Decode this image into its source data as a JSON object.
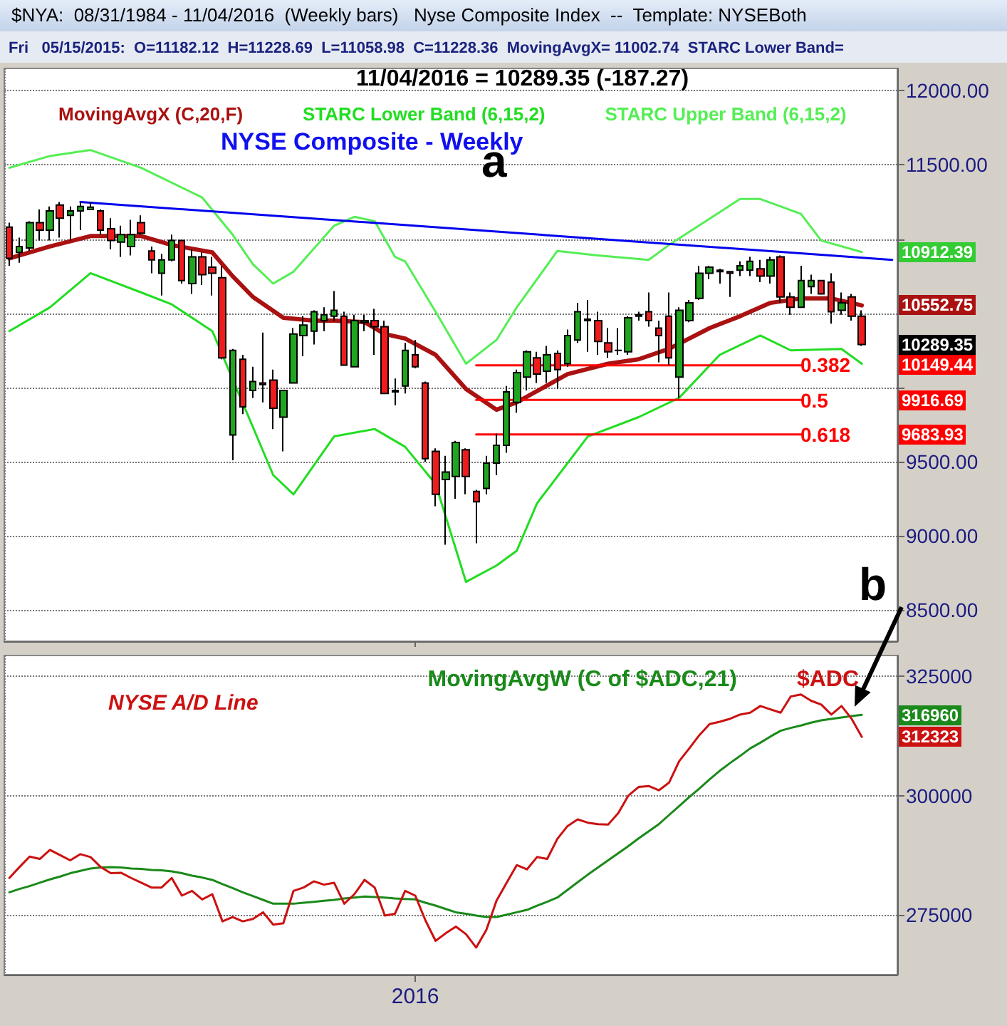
{
  "chart_data": [
    {
      "type": "candlestick",
      "title": "NYSE Composite - Weekly",
      "annotations": [
        "$NYA:  08/31/1984 - 11/04/2016  (Weekly bars)   Nyse Composite Index  --  Template: NYSEBoth",
        "Fri   05/15/2015:  O=11182.12  H=11228.69  L=11058.98  C=11228.36  MovingAvgX= 11002.74  STARC Lower Band=",
        "11/04/2016 = 10289.35 (-187.27)",
        "a",
        "b",
        "10912.39",
        "10552.75",
        "10289.35",
        "10149.44",
        "9916.69",
        "9683.93",
        "0.382",
        "0.5",
        "0.618"
      ],
      "categories": [
        null,
        null,
        null,
        null,
        null,
        null,
        null,
        null,
        null,
        null,
        null,
        null,
        null,
        null,
        null,
        null,
        null,
        null,
        null,
        null,
        null,
        null,
        null,
        null,
        null,
        null,
        null,
        null,
        null,
        null,
        null,
        null,
        null,
        null,
        null,
        null,
        null,
        null,
        null,
        null,
        null,
        null,
        null,
        null,
        null,
        null,
        null,
        null,
        null,
        null,
        null,
        null,
        null,
        null,
        null,
        null,
        null,
        null,
        null,
        null,
        null,
        null,
        null,
        null,
        null,
        null,
        null,
        null,
        null,
        null,
        null,
        null,
        null,
        null,
        null,
        null,
        null,
        null,
        null,
        null,
        null,
        null,
        null,
        null,
        null,
        null,
        null,
        null
      ],
      "ohlc": [
        [
          11080,
          11110,
          10820,
          10870
        ],
        [
          10910,
          11010,
          10840,
          10950
        ],
        [
          10940,
          11120,
          10920,
          11110
        ],
        [
          11110,
          11200,
          10990,
          11060
        ],
        [
          11060,
          11220,
          10990,
          11190
        ],
        [
          11230,
          11250,
          11010,
          11140
        ],
        [
          11160,
          11220,
          10990,
          11190
        ],
        [
          11190,
          11250,
          11060,
          11220
        ],
        [
          11200,
          11250,
          11195,
          11215
        ],
        [
          11190,
          11200,
          11030,
          11060
        ],
        [
          11070,
          11140,
          10930,
          10990
        ],
        [
          10980,
          11090,
          10880,
          11030
        ],
        [
          10950,
          11130,
          10890,
          11030
        ],
        [
          11110,
          11160,
          11030,
          11040
        ],
        [
          10920,
          10950,
          10770,
          10860
        ],
        [
          10770,
          10900,
          10620,
          10860
        ],
        [
          10860,
          11030,
          10850,
          10990
        ],
        [
          10990,
          10990,
          10700,
          10720
        ],
        [
          10700,
          10930,
          10630,
          10880
        ],
        [
          10880,
          10910,
          10690,
          10760
        ],
        [
          10810,
          10880,
          10620,
          10770
        ],
        [
          10740,
          10820,
          10190,
          10200
        ],
        [
          9680,
          10260,
          9510,
          10250
        ],
        [
          10190,
          10220,
          9820,
          9870
        ],
        [
          9980,
          10140,
          9930,
          10040
        ],
        [
          10030,
          10370,
          9900,
          10020
        ],
        [
          10050,
          10120,
          9720,
          9860
        ],
        [
          9800,
          9980,
          9570,
          9980
        ],
        [
          10030,
          10400,
          10030,
          10360
        ],
        [
          10350,
          10480,
          10210,
          10420
        ],
        [
          10380,
          10520,
          10290,
          10510
        ],
        [
          10450,
          10540,
          10380,
          10490
        ],
        [
          10480,
          10650,
          10450,
          10520
        ],
        [
          10480,
          10510,
          10150,
          10150
        ],
        [
          10140,
          10490,
          10140,
          10450
        ],
        [
          10440,
          10490,
          10380,
          10450
        ],
        [
          10450,
          10530,
          10220,
          10410
        ],
        [
          10410,
          10450,
          9960,
          9960
        ],
        [
          9970,
          10060,
          9880,
          9980
        ],
        [
          10010,
          10300,
          9960,
          10250
        ],
        [
          10220,
          10320,
          10130,
          10140
        ],
        [
          10030,
          10040,
          9500,
          9520
        ],
        [
          9570,
          9590,
          9200,
          9280
        ],
        [
          9380,
          9540,
          8940,
          9430
        ],
        [
          9400,
          9640,
          9250,
          9630
        ],
        [
          9580,
          9590,
          9280,
          9400
        ],
        [
          9300,
          9310,
          8950,
          9230
        ],
        [
          9320,
          9540,
          9280,
          9490
        ],
        [
          9490,
          9690,
          9410,
          9610
        ],
        [
          9610,
          10010,
          9560,
          9970
        ],
        [
          9900,
          10120,
          9830,
          10100
        ],
        [
          10070,
          10250,
          9980,
          10240
        ],
        [
          10200,
          10240,
          10030,
          10090
        ],
        [
          10110,
          10280,
          10030,
          10220
        ],
        [
          10230,
          10250,
          9990,
          10120
        ],
        [
          10160,
          10390,
          10140,
          10350
        ],
        [
          10320,
          10570,
          10300,
          10510
        ],
        [
          10460,
          10590,
          10240,
          10450
        ],
        [
          10450,
          10510,
          10220,
          10310
        ],
        [
          10300,
          10400,
          10200,
          10240
        ],
        [
          10250,
          10400,
          10220,
          10250
        ],
        [
          10240,
          10480,
          10220,
          10470
        ],
        [
          10480,
          10510,
          10450,
          10490
        ],
        [
          10510,
          10640,
          10410,
          10450
        ],
        [
          10400,
          10450,
          10170,
          10350
        ],
        [
          10480,
          10640,
          10150,
          10200
        ],
        [
          10070,
          10540,
          9930,
          10520
        ],
        [
          10450,
          10590,
          10440,
          10570
        ],
        [
          10600,
          10820,
          10590,
          10770
        ],
        [
          10770,
          10820,
          10730,
          10810
        ],
        [
          10790,
          10800,
          10700,
          10780
        ],
        [
          10780,
          10780,
          10610,
          10770
        ],
        [
          10790,
          10850,
          10750,
          10820
        ],
        [
          10790,
          10880,
          10750,
          10850
        ],
        [
          10800,
          10860,
          10710,
          10750
        ],
        [
          10750,
          10880,
          10700,
          10860
        ],
        [
          10880,
          10890,
          10570,
          10610
        ],
        [
          10610,
          10640,
          10490,
          10540
        ],
        [
          10540,
          10820,
          10540,
          10720
        ],
        [
          10680,
          10760,
          10630,
          10720
        ],
        [
          10720,
          10720,
          10630,
          10630
        ],
        [
          10710,
          10770,
          10430,
          10510
        ],
        [
          10520,
          10640,
          10490,
          10570
        ],
        [
          10610,
          10630,
          10450,
          10480
        ],
        [
          10480,
          10520,
          10280,
          10289.35
        ],
        null,
        null,
        null
      ],
      "series": [
        {
          "type": "line",
          "name": "MovingAvgX (C,20,F)",
          "color": "#aa1111",
          "values": [
            10870,
            null,
            null,
            null,
            10950,
            null,
            null,
            null,
            11020,
            null,
            null,
            null,
            null,
            11020,
            null,
            null,
            10960,
            null,
            null,
            null,
            10910,
            null,
            10750,
            null,
            10610,
            null,
            null,
            10470,
            null,
            null,
            10450,
            null,
            10450,
            null,
            null,
            10440,
            null,
            10360,
            null,
            10330,
            null,
            null,
            10220,
            null,
            null,
            9990,
            null,
            null,
            9850,
            null,
            9900,
            null,
            null,
            null,
            null,
            10090,
            null,
            null,
            null,
            10160,
            null,
            null,
            10190,
            null,
            null,
            10260,
            null,
            null,
            null,
            10400,
            null,
            null,
            10480,
            null,
            null,
            10570,
            null,
            null,
            10600,
            null,
            null,
            10600,
            null,
            null,
            10552.75,
            null,
            null,
            null
          ]
        },
        {
          "type": "line",
          "name": "STARC Lower Band (6,15,2)",
          "color": "#22dd22",
          "values": [
            10380,
            null,
            null,
            null,
            10540,
            null,
            null,
            null,
            10770,
            null,
            null,
            null,
            null,
            10640,
            null,
            null,
            10560,
            null,
            null,
            null,
            10380,
            null,
            null,
            null,
            null,
            null,
            9410,
            null,
            9280,
            null,
            null,
            null,
            9670,
            null,
            null,
            null,
            9720,
            null,
            null,
            9600,
            null,
            null,
            9350,
            null,
            null,
            8690,
            null,
            null,
            8800,
            null,
            8900,
            null,
            9220,
            null,
            null,
            null,
            null,
            9670,
            null,
            null,
            null,
            null,
            9800,
            null,
            null,
            null,
            9930,
            null,
            null,
            null,
            10220,
            null,
            null,
            null,
            10350,
            null,
            null,
            10250,
            null,
            null,
            null,
            null,
            10260,
            null,
            10160,
            null,
            null,
            null
          ]
        },
        {
          "type": "line",
          "name": "STARC Upper Band (6,15,2)",
          "color": "#55ee55",
          "values": [
            11480,
            null,
            null,
            null,
            11560,
            null,
            null,
            null,
            11600,
            null,
            null,
            null,
            null,
            11480,
            null,
            null,
            null,
            null,
            null,
            11280,
            null,
            null,
            11030,
            null,
            10830,
            null,
            10700,
            null,
            10780,
            null,
            null,
            null,
            11090,
            null,
            11150,
            null,
            11120,
            null,
            10880,
            10850,
            null,
            null,
            10510,
            null,
            null,
            10160,
            null,
            null,
            10320,
            null,
            10540,
            null,
            null,
            null,
            10920,
            null,
            null,
            null,
            10890,
            null,
            null,
            null,
            null,
            10860,
            null,
            10960,
            null,
            null,
            null,
            null,
            null,
            null,
            11270,
            null,
            11270,
            null,
            null,
            null,
            11170,
            null,
            10990,
            null,
            null,
            null,
            10912.39,
            null,
            null,
            null
          ]
        },
        {
          "type": "line",
          "color": "#0000ee",
          "values": [
            null,
            null,
            null,
            null,
            null,
            null,
            null,
            11250,
            null,
            null,
            null,
            null,
            null,
            null,
            null,
            null,
            null,
            null,
            null,
            null,
            null,
            null,
            null,
            null,
            null,
            null,
            null,
            null,
            null,
            null,
            null,
            null,
            null,
            null,
            null,
            null,
            null,
            null,
            null,
            null,
            null,
            null,
            null,
            null,
            null,
            null,
            null,
            null,
            null,
            null,
            null,
            null,
            null,
            null,
            null,
            null,
            null,
            null,
            null,
            null,
            null,
            null,
            null,
            null,
            null,
            null,
            null,
            null,
            null,
            null,
            null,
            null,
            null,
            null,
            null,
            null,
            null,
            null,
            null,
            null,
            null,
            null,
            null,
            null,
            null,
            null,
            null,
            10860
          ]
        },
        {
          "type": "line",
          "color": "#ff0000",
          "values": [
            null,
            null,
            null,
            null,
            null,
            null,
            null,
            null,
            null,
            null,
            null,
            null,
            null,
            null,
            null,
            null,
            null,
            null,
            null,
            null,
            null,
            null,
            null,
            null,
            null,
            null,
            null,
            null,
            null,
            null,
            null,
            null,
            null,
            null,
            null,
            null,
            null,
            null,
            null,
            null,
            null,
            null,
            null,
            null,
            null,
            null,
            10149.44,
            null,
            null,
            null,
            null,
            null,
            null,
            null,
            null,
            null,
            null,
            null,
            null,
            null,
            null,
            null,
            null,
            null,
            null,
            null,
            null,
            null,
            null,
            null,
            null,
            null,
            null,
            null,
            null,
            null,
            null,
            null,
            10149.44,
            null,
            null,
            null,
            null,
            null,
            null,
            null,
            null,
            null
          ]
        },
        {
          "type": "line",
          "color": "#ff0000",
          "values": [
            null,
            null,
            null,
            null,
            null,
            null,
            null,
            null,
            null,
            null,
            null,
            null,
            null,
            null,
            null,
            null,
            null,
            null,
            null,
            null,
            null,
            null,
            null,
            null,
            null,
            null,
            null,
            null,
            null,
            null,
            null,
            null,
            null,
            null,
            null,
            null,
            null,
            null,
            null,
            null,
            null,
            null,
            null,
            null,
            null,
            null,
            9916.69,
            null,
            null,
            null,
            null,
            null,
            null,
            null,
            null,
            null,
            null,
            null,
            null,
            null,
            null,
            null,
            null,
            null,
            null,
            null,
            null,
            null,
            null,
            null,
            null,
            null,
            null,
            null,
            null,
            null,
            null,
            null,
            9916.69,
            null,
            null,
            null,
            null,
            null,
            null,
            null,
            null,
            null
          ]
        },
        {
          "type": "line",
          "color": "#ff0000",
          "values": [
            null,
            null,
            null,
            null,
            null,
            null,
            null,
            null,
            null,
            null,
            null,
            null,
            null,
            null,
            null,
            null,
            null,
            null,
            null,
            null,
            null,
            null,
            null,
            null,
            null,
            null,
            null,
            null,
            null,
            null,
            null,
            null,
            null,
            null,
            null,
            null,
            null,
            null,
            null,
            null,
            null,
            null,
            null,
            null,
            null,
            null,
            9683.93,
            null,
            null,
            null,
            null,
            null,
            null,
            null,
            null,
            null,
            null,
            null,
            null,
            null,
            null,
            null,
            null,
            null,
            null,
            null,
            null,
            null,
            null,
            null,
            null,
            null,
            null,
            null,
            null,
            null,
            null,
            null,
            9683.93,
            null,
            null,
            null,
            null,
            null,
            null,
            null,
            null,
            null
          ]
        }
      ],
      "ylim": [
        8290,
        12150
      ],
      "yticks": [
        {
          "value": 8500,
          "label": "8500.00"
        },
        {
          "value": 9000,
          "label": "9000.00"
        },
        {
          "value": 9500,
          "label": "9500.00"
        },
        {
          "value": 10000,
          "label": null
        },
        {
          "value": 10500,
          "label": null
        },
        {
          "value": 11000,
          "label": null
        },
        {
          "value": 11500,
          "label": "11500.00"
        },
        {
          "value": 12000,
          "label": "12000.00"
        }
      ],
      "tick_labels": "y",
      "grid": true,
      "legend": "top left"
    },
    {
      "type": "line",
      "annotations": [
        "NYSE A/D Line",
        "316960",
        "312323"
      ],
      "categories": [
        null,
        null,
        null,
        null,
        null,
        null,
        null,
        null,
        null,
        null,
        null,
        null,
        null,
        null,
        null,
        null,
        null,
        null,
        null,
        null,
        null,
        null,
        null,
        null,
        null,
        null,
        null,
        null,
        null,
        null,
        null,
        null,
        null,
        null,
        null,
        null,
        null,
        null,
        null,
        null,
        "2016",
        null,
        null,
        null,
        null,
        null,
        null,
        null,
        null,
        null,
        null,
        null,
        null,
        null,
        null,
        null,
        null,
        null,
        null,
        null,
        null,
        null,
        null,
        null,
        null,
        null,
        null,
        null,
        null,
        null,
        null,
        null,
        null,
        null,
        null,
        null,
        null,
        null,
        null,
        null,
        null,
        null,
        null,
        null,
        null,
        null,
        null,
        null
      ],
      "series": [
        {
          "name": "MovingAvgW (C of $ADC,21)",
          "color": "#1a8a1a",
          "values": [
            279700,
            280400,
            281000,
            281700,
            282400,
            283000,
            283700,
            284200,
            284700,
            284900,
            285000,
            284900,
            284700,
            284600,
            284400,
            284300,
            284100,
            283700,
            283200,
            282800,
            282300,
            281400,
            280600,
            279700,
            278900,
            278100,
            277300,
            277300,
            277300,
            277500,
            277700,
            277900,
            278100,
            278400,
            278600,
            278800,
            278700,
            278600,
            278400,
            278300,
            278200,
            277500,
            276900,
            276200,
            275500,
            275200,
            274800,
            274500,
            274500,
            275000,
            275500,
            276000,
            276900,
            277700,
            278600,
            280200,
            281800,
            283400,
            284900,
            286400,
            287900,
            289400,
            291000,
            292500,
            294000,
            295900,
            297800,
            299700,
            301500,
            303400,
            305200,
            306800,
            308300,
            309900,
            311100,
            312400,
            313600,
            314200,
            314700,
            315300,
            315800,
            316100,
            316400,
            316700,
            316960,
            null,
            null,
            null
          ]
        },
        {
          "name": "$ADC",
          "color": "#cc1111",
          "values": [
            282700,
            285000,
            287200,
            286700,
            288600,
            287500,
            286400,
            287700,
            287100,
            285000,
            283700,
            283800,
            282700,
            281700,
            280700,
            280700,
            282700,
            279000,
            280000,
            278200,
            279300,
            273600,
            274500,
            273600,
            274100,
            275500,
            272900,
            273200,
            280000,
            280700,
            282000,
            281300,
            281700,
            277300,
            279300,
            282300,
            280700,
            274800,
            275200,
            280000,
            279000,
            273800,
            269500,
            271100,
            272500,
            270900,
            268100,
            271800,
            277900,
            281700,
            285400,
            284500,
            287100,
            286700,
            290900,
            293600,
            295000,
            294300,
            294000,
            293900,
            296300,
            300000,
            301800,
            302000,
            301100,
            302700,
            307200,
            309900,
            312700,
            315000,
            315500,
            316100,
            317000,
            317400,
            318800,
            318100,
            317400,
            320800,
            321200,
            319900,
            319100,
            317000,
            318800,
            316100,
            312323,
            null,
            null,
            null
          ]
        }
      ],
      "ylim": [
        262400,
        329400
      ],
      "yticks": [
        275000,
        300000,
        325000
      ],
      "grid": true,
      "legend": "top right"
    }
  ]
}
